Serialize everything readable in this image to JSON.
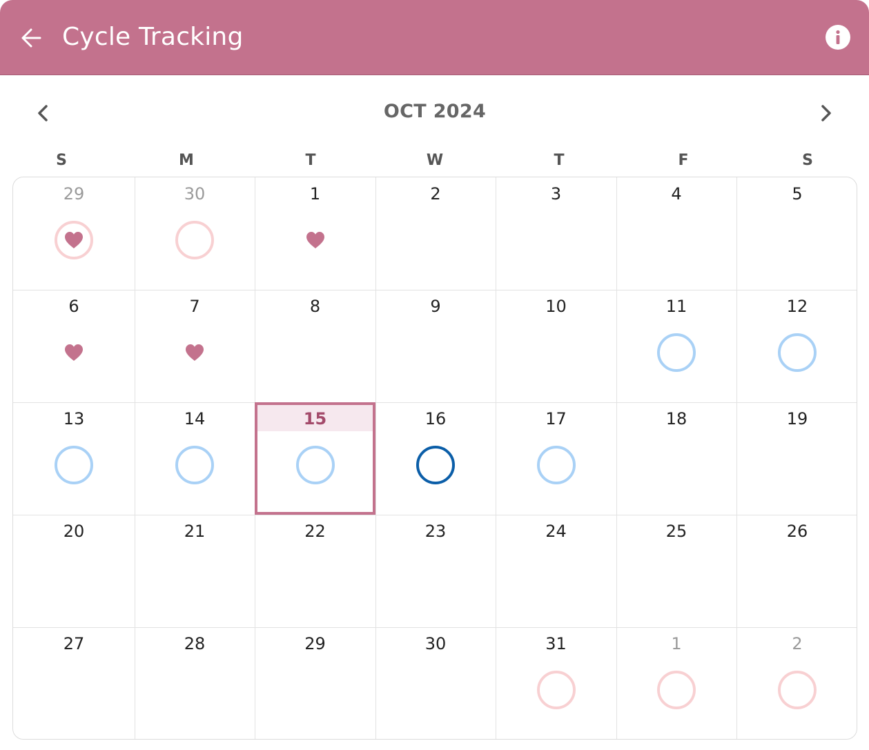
{
  "header": {
    "title": "Cycle Tracking",
    "back_icon": "arrow-left-icon",
    "info_icon": "info-icon",
    "background_color": "#c3728d"
  },
  "month_nav": {
    "label": "OCT 2024",
    "prev_icon": "chevron-left-icon",
    "next_icon": "chevron-right-icon"
  },
  "weekdays": [
    "S",
    "M",
    "T",
    "W",
    "T",
    "F",
    "S"
  ],
  "legend_colors": {
    "period": "#f8d0d2",
    "fertile": "#a9d1f6",
    "ovulation": "#0b5ea8",
    "heart": "#c3728d",
    "today": "#c3728d"
  },
  "weeks": [
    [
      {
        "day": "29",
        "other_month": true,
        "markers": [
          "period-ring",
          "heart"
        ]
      },
      {
        "day": "30",
        "other_month": true,
        "markers": [
          "period-ring"
        ]
      },
      {
        "day": "1",
        "other_month": false,
        "markers": [
          "heart"
        ]
      },
      {
        "day": "2",
        "other_month": false,
        "markers": []
      },
      {
        "day": "3",
        "other_month": false,
        "markers": []
      },
      {
        "day": "4",
        "other_month": false,
        "markers": []
      },
      {
        "day": "5",
        "other_month": false,
        "markers": []
      }
    ],
    [
      {
        "day": "6",
        "other_month": false,
        "markers": [
          "heart"
        ]
      },
      {
        "day": "7",
        "other_month": false,
        "markers": [
          "heart"
        ]
      },
      {
        "day": "8",
        "other_month": false,
        "markers": []
      },
      {
        "day": "9",
        "other_month": false,
        "markers": []
      },
      {
        "day": "10",
        "other_month": false,
        "markers": []
      },
      {
        "day": "11",
        "other_month": false,
        "markers": [
          "fertile-ring"
        ]
      },
      {
        "day": "12",
        "other_month": false,
        "markers": [
          "fertile-ring"
        ]
      }
    ],
    [
      {
        "day": "13",
        "other_month": false,
        "markers": [
          "fertile-ring"
        ]
      },
      {
        "day": "14",
        "other_month": false,
        "markers": [
          "fertile-ring"
        ]
      },
      {
        "day": "15",
        "other_month": false,
        "markers": [
          "fertile-ring"
        ],
        "today": true
      },
      {
        "day": "16",
        "other_month": false,
        "markers": [
          "ovulation-ring"
        ]
      },
      {
        "day": "17",
        "other_month": false,
        "markers": [
          "fertile-ring"
        ]
      },
      {
        "day": "18",
        "other_month": false,
        "markers": []
      },
      {
        "day": "19",
        "other_month": false,
        "markers": []
      }
    ],
    [
      {
        "day": "20",
        "other_month": false,
        "markers": []
      },
      {
        "day": "21",
        "other_month": false,
        "markers": []
      },
      {
        "day": "22",
        "other_month": false,
        "markers": []
      },
      {
        "day": "23",
        "other_month": false,
        "markers": []
      },
      {
        "day": "24",
        "other_month": false,
        "markers": []
      },
      {
        "day": "25",
        "other_month": false,
        "markers": []
      },
      {
        "day": "26",
        "other_month": false,
        "markers": []
      }
    ],
    [
      {
        "day": "27",
        "other_month": false,
        "markers": []
      },
      {
        "day": "28",
        "other_month": false,
        "markers": []
      },
      {
        "day": "29",
        "other_month": false,
        "markers": []
      },
      {
        "day": "30",
        "other_month": false,
        "markers": []
      },
      {
        "day": "31",
        "other_month": false,
        "markers": [
          "period-ring"
        ]
      },
      {
        "day": "1",
        "other_month": true,
        "markers": [
          "period-ring"
        ]
      },
      {
        "day": "2",
        "other_month": true,
        "markers": [
          "period-ring"
        ]
      }
    ]
  ]
}
